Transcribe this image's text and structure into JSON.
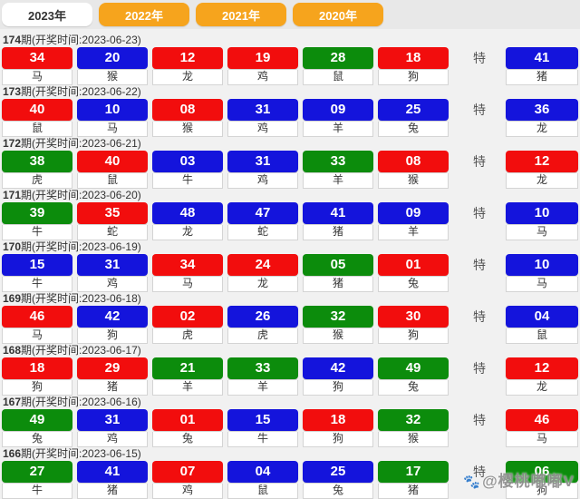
{
  "colors": {
    "red": "#f20d0d",
    "blue": "#1414dc",
    "green": "#0c8c0c",
    "tab_orange": "#f6a41d",
    "tab_active_bg": "#ffffff",
    "tab_active_text": "#333333"
  },
  "tabs": [
    {
      "label": "2023年",
      "active": true
    },
    {
      "label": "2022年",
      "active": false
    },
    {
      "label": "2021年",
      "active": false
    },
    {
      "label": "2020年",
      "active": false
    }
  ],
  "labels": {
    "special": "特"
  },
  "watermark": {
    "icon": "🐾",
    "text": "@樱桃嘟嘟V"
  },
  "draws": [
    {
      "period": "174",
      "rest": "期(开奖时间:2023-06-23)",
      "numbers": [
        {
          "num": "34",
          "color": "red",
          "zodiac": "马"
        },
        {
          "num": "20",
          "color": "blue",
          "zodiac": "猴"
        },
        {
          "num": "12",
          "color": "red",
          "zodiac": "龙"
        },
        {
          "num": "19",
          "color": "red",
          "zodiac": "鸡"
        },
        {
          "num": "28",
          "color": "green",
          "zodiac": "鼠"
        },
        {
          "num": "18",
          "color": "red",
          "zodiac": "狗"
        }
      ],
      "special": {
        "num": "41",
        "color": "blue",
        "zodiac": "猪"
      }
    },
    {
      "period": "173",
      "rest": "期(开奖时间:2023-06-22)",
      "numbers": [
        {
          "num": "40",
          "color": "red",
          "zodiac": "鼠"
        },
        {
          "num": "10",
          "color": "blue",
          "zodiac": "马"
        },
        {
          "num": "08",
          "color": "red",
          "zodiac": "猴"
        },
        {
          "num": "31",
          "color": "blue",
          "zodiac": "鸡"
        },
        {
          "num": "09",
          "color": "blue",
          "zodiac": "羊"
        },
        {
          "num": "25",
          "color": "blue",
          "zodiac": "兔"
        }
      ],
      "special": {
        "num": "36",
        "color": "blue",
        "zodiac": "龙"
      }
    },
    {
      "period": "172",
      "rest": "期(开奖时间:2023-06-21)",
      "numbers": [
        {
          "num": "38",
          "color": "green",
          "zodiac": "虎"
        },
        {
          "num": "40",
          "color": "red",
          "zodiac": "鼠"
        },
        {
          "num": "03",
          "color": "blue",
          "zodiac": "牛"
        },
        {
          "num": "31",
          "color": "blue",
          "zodiac": "鸡"
        },
        {
          "num": "33",
          "color": "green",
          "zodiac": "羊"
        },
        {
          "num": "08",
          "color": "red",
          "zodiac": "猴"
        }
      ],
      "special": {
        "num": "12",
        "color": "red",
        "zodiac": "龙"
      }
    },
    {
      "period": "171",
      "rest": "期(开奖时间:2023-06-20)",
      "numbers": [
        {
          "num": "39",
          "color": "green",
          "zodiac": "牛"
        },
        {
          "num": "35",
          "color": "red",
          "zodiac": "蛇"
        },
        {
          "num": "48",
          "color": "blue",
          "zodiac": "龙"
        },
        {
          "num": "47",
          "color": "blue",
          "zodiac": "蛇"
        },
        {
          "num": "41",
          "color": "blue",
          "zodiac": "猪"
        },
        {
          "num": "09",
          "color": "blue",
          "zodiac": "羊"
        }
      ],
      "special": {
        "num": "10",
        "color": "blue",
        "zodiac": "马"
      }
    },
    {
      "period": "170",
      "rest": "期(开奖时间:2023-06-19)",
      "numbers": [
        {
          "num": "15",
          "color": "blue",
          "zodiac": "牛"
        },
        {
          "num": "31",
          "color": "blue",
          "zodiac": "鸡"
        },
        {
          "num": "34",
          "color": "red",
          "zodiac": "马"
        },
        {
          "num": "24",
          "color": "red",
          "zodiac": "龙"
        },
        {
          "num": "05",
          "color": "green",
          "zodiac": "猪"
        },
        {
          "num": "01",
          "color": "red",
          "zodiac": "兔"
        }
      ],
      "special": {
        "num": "10",
        "color": "blue",
        "zodiac": "马"
      }
    },
    {
      "period": "169",
      "rest": "期(开奖时间:2023-06-18)",
      "numbers": [
        {
          "num": "46",
          "color": "red",
          "zodiac": "马"
        },
        {
          "num": "42",
          "color": "blue",
          "zodiac": "狗"
        },
        {
          "num": "02",
          "color": "red",
          "zodiac": "虎"
        },
        {
          "num": "26",
          "color": "blue",
          "zodiac": "虎"
        },
        {
          "num": "32",
          "color": "green",
          "zodiac": "猴"
        },
        {
          "num": "30",
          "color": "red",
          "zodiac": "狗"
        }
      ],
      "special": {
        "num": "04",
        "color": "blue",
        "zodiac": "鼠"
      }
    },
    {
      "period": "168",
      "rest": "期(开奖时间:2023-06-17)",
      "numbers": [
        {
          "num": "18",
          "color": "red",
          "zodiac": "狗"
        },
        {
          "num": "29",
          "color": "red",
          "zodiac": "猪"
        },
        {
          "num": "21",
          "color": "green",
          "zodiac": "羊"
        },
        {
          "num": "33",
          "color": "green",
          "zodiac": "羊"
        },
        {
          "num": "42",
          "color": "blue",
          "zodiac": "狗"
        },
        {
          "num": "49",
          "color": "green",
          "zodiac": "兔"
        }
      ],
      "special": {
        "num": "12",
        "color": "red",
        "zodiac": "龙"
      }
    },
    {
      "period": "167",
      "rest": "期(开奖时间:2023-06-16)",
      "numbers": [
        {
          "num": "49",
          "color": "green",
          "zodiac": "兔"
        },
        {
          "num": "31",
          "color": "blue",
          "zodiac": "鸡"
        },
        {
          "num": "01",
          "color": "red",
          "zodiac": "兔"
        },
        {
          "num": "15",
          "color": "blue",
          "zodiac": "牛"
        },
        {
          "num": "18",
          "color": "red",
          "zodiac": "狗"
        },
        {
          "num": "32",
          "color": "green",
          "zodiac": "猴"
        }
      ],
      "special": {
        "num": "46",
        "color": "red",
        "zodiac": "马"
      }
    },
    {
      "period": "166",
      "rest": "期(开奖时间:2023-06-15)",
      "numbers": [
        {
          "num": "27",
          "color": "green",
          "zodiac": "牛"
        },
        {
          "num": "41",
          "color": "blue",
          "zodiac": "猪"
        },
        {
          "num": "07",
          "color": "red",
          "zodiac": "鸡"
        },
        {
          "num": "04",
          "color": "blue",
          "zodiac": "鼠"
        },
        {
          "num": "25",
          "color": "blue",
          "zodiac": "兔"
        },
        {
          "num": "17",
          "color": "green",
          "zodiac": "猪"
        }
      ],
      "special": {
        "num": "06",
        "color": "green",
        "zodiac": "狗"
      }
    }
  ]
}
